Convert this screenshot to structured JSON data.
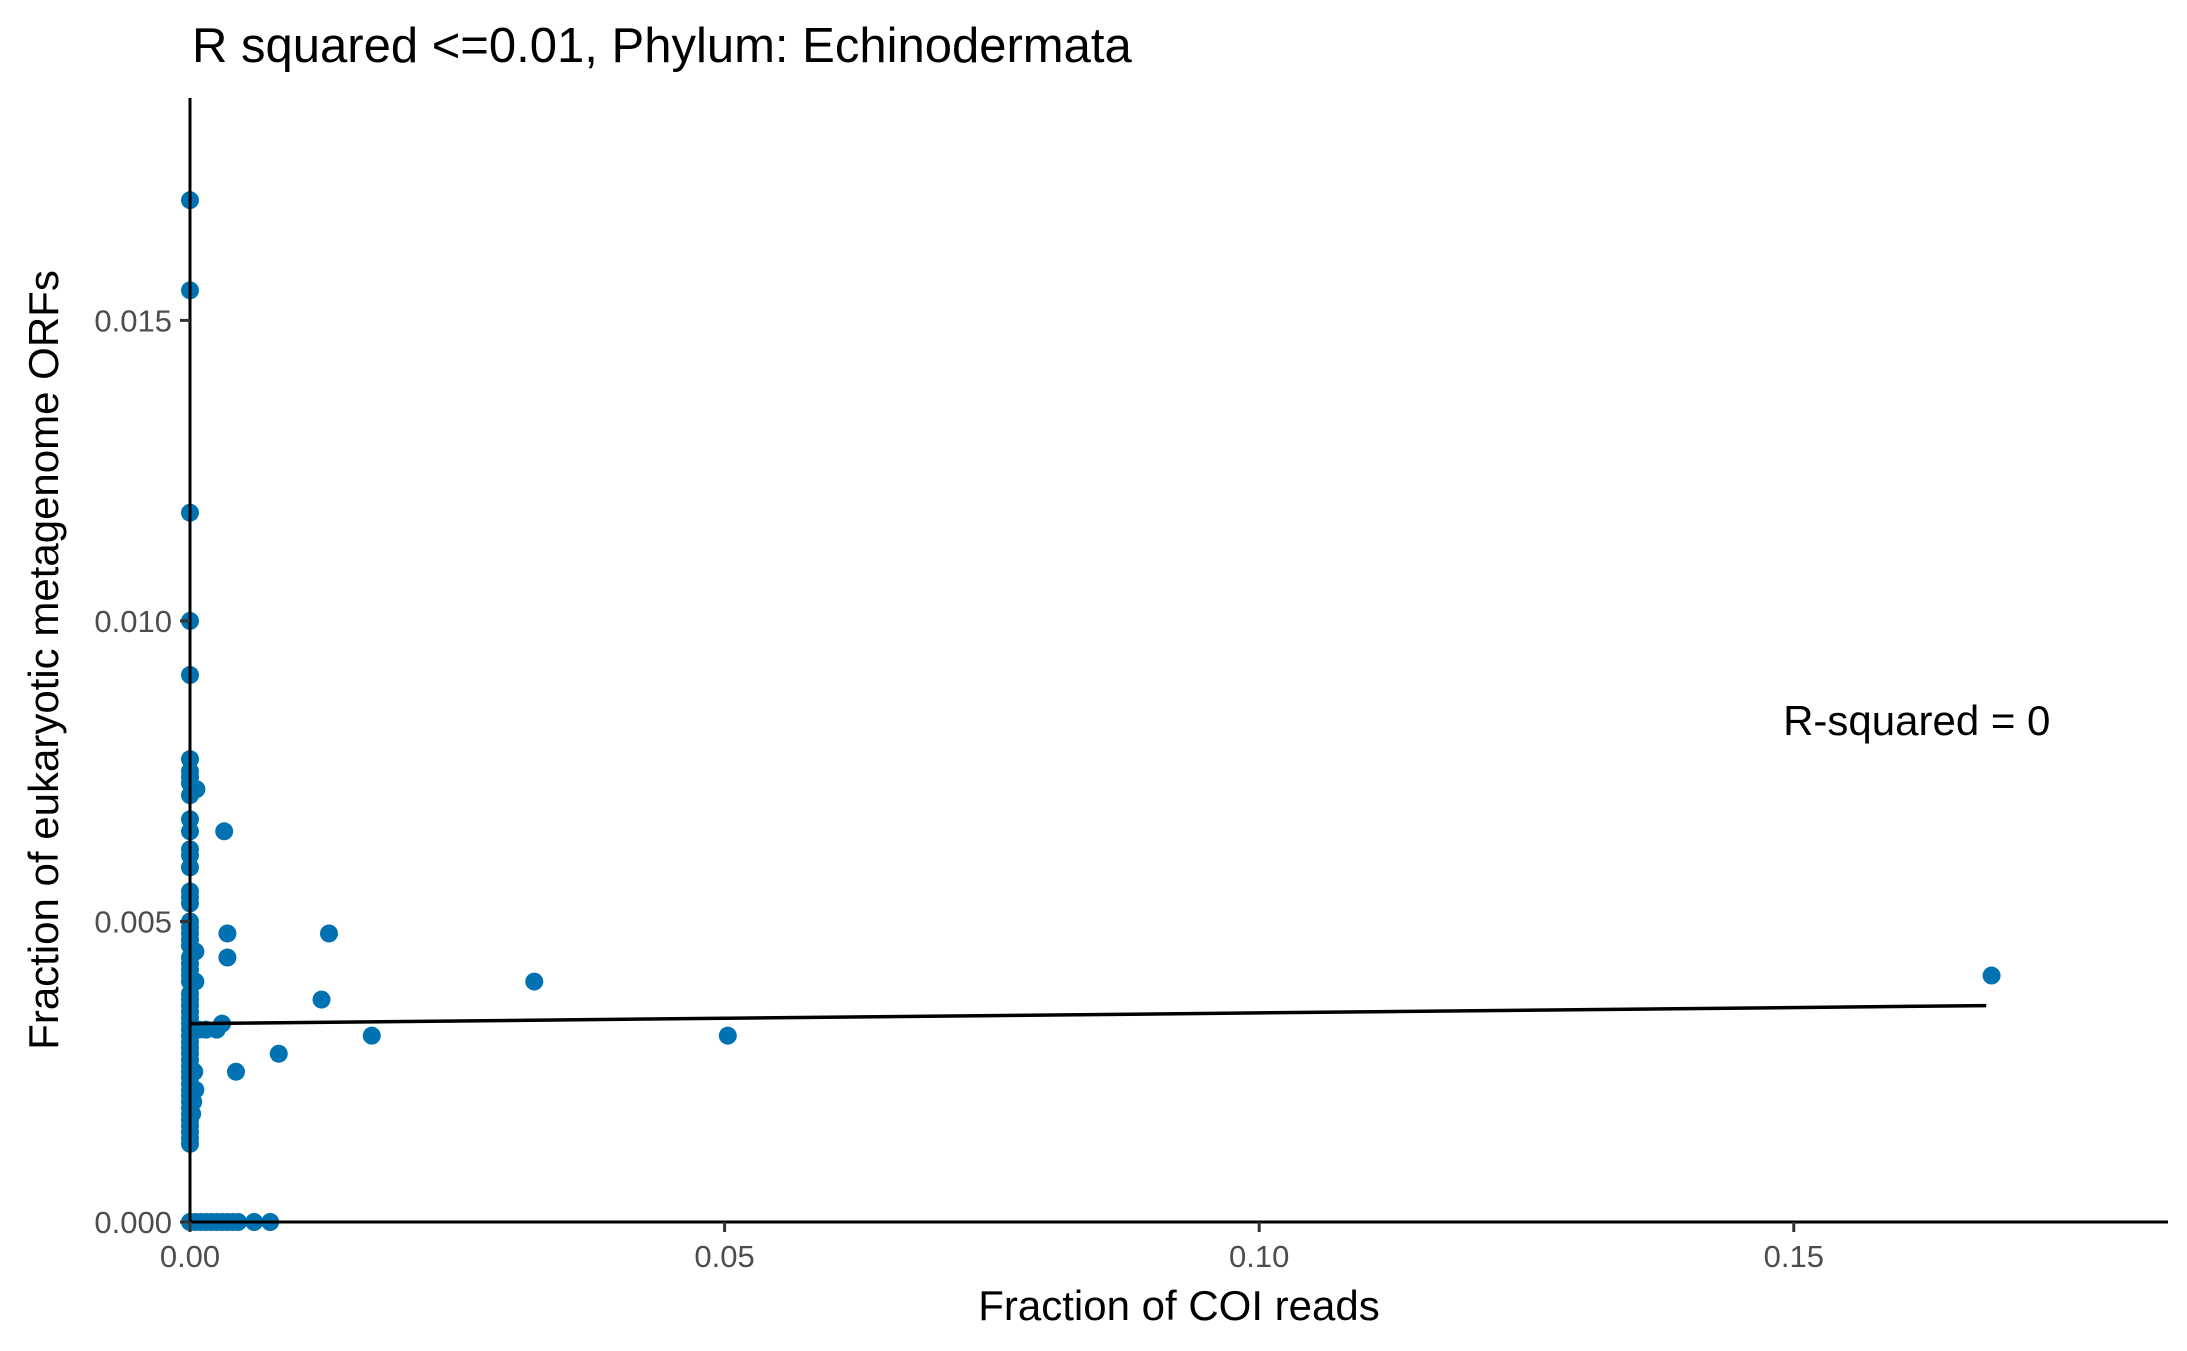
{
  "chart_data": {
    "type": "scatter",
    "title": "R squared <=0.01, Phylum:  Echinodermata",
    "xlabel": "Fraction of COI reads",
    "ylabel": "Fraction of eukaryotic metagenome ORFs",
    "xlim": [
      0,
      0.185
    ],
    "ylim": [
      0,
      0.0187
    ],
    "x_ticks": [
      0.0,
      0.05,
      0.1,
      0.15
    ],
    "x_tick_labels": [
      "0.00",
      "0.05",
      "0.10",
      "0.15"
    ],
    "y_ticks": [
      0.0,
      0.005,
      0.01,
      0.015
    ],
    "y_tick_labels": [
      "0.000",
      "0.005",
      "0.010",
      "0.015"
    ],
    "grid": false,
    "point_color": "#0072B2",
    "line_color": "#000000",
    "annotation": {
      "text": "R-squared =  0",
      "x": 0.149,
      "y": 0.0081
    },
    "fit_line": {
      "x": [
        0.0,
        0.168
      ],
      "y": [
        0.0033,
        0.0036
      ]
    },
    "points": [
      [
        0.0,
        0.017
      ],
      [
        0.0,
        0.0155
      ],
      [
        0.0,
        0.0118
      ],
      [
        0.0,
        0.01
      ],
      [
        0.0,
        0.0091
      ],
      [
        0.0,
        0.0077
      ],
      [
        0.0,
        0.0075
      ],
      [
        0.0,
        0.0074
      ],
      [
        0.0,
        0.0073
      ],
      [
        0.0,
        0.0071
      ],
      [
        0.0,
        0.0067
      ],
      [
        0.0,
        0.0065
      ],
      [
        0.0,
        0.0062
      ],
      [
        0.0,
        0.0061
      ],
      [
        0.0,
        0.0059
      ],
      [
        0.0,
        0.0055
      ],
      [
        0.0,
        0.0054
      ],
      [
        0.0,
        0.0053
      ],
      [
        0.0,
        0.005
      ],
      [
        0.0,
        0.0049
      ],
      [
        0.0,
        0.0048
      ],
      [
        0.0,
        0.0047
      ],
      [
        0.0,
        0.0046
      ],
      [
        0.0,
        0.0044
      ],
      [
        0.0,
        0.0043
      ],
      [
        0.0,
        0.0042
      ],
      [
        0.0,
        0.0041
      ],
      [
        0.0,
        0.004
      ],
      [
        0.0,
        0.0038
      ],
      [
        0.0,
        0.0037
      ],
      [
        0.0,
        0.0036
      ],
      [
        0.0,
        0.0035
      ],
      [
        0.0,
        0.0034
      ],
      [
        0.0,
        0.0033
      ],
      [
        0.0,
        0.0032
      ],
      [
        0.0,
        0.0031
      ],
      [
        0.0,
        0.003
      ],
      [
        0.0,
        0.0029
      ],
      [
        0.0,
        0.0028
      ],
      [
        0.0,
        0.0027
      ],
      [
        0.0,
        0.0026
      ],
      [
        0.0,
        0.0025
      ],
      [
        0.0,
        0.0024
      ],
      [
        0.0,
        0.0023
      ],
      [
        0.0,
        0.0022
      ],
      [
        0.0,
        0.0021
      ],
      [
        0.0,
        0.002
      ],
      [
        0.0,
        0.0019
      ],
      [
        0.0,
        0.0018
      ],
      [
        0.0,
        0.0017
      ],
      [
        0.0,
        0.0016
      ],
      [
        0.0,
        0.0015
      ],
      [
        0.0,
        0.0014
      ],
      [
        0.0,
        0.0013
      ],
      [
        0.0,
        0.0
      ],
      [
        0.0006,
        0.0072
      ],
      [
        0.0005,
        0.0045
      ],
      [
        0.0005,
        0.004
      ],
      [
        0.0004,
        0.0032
      ],
      [
        0.0004,
        0.0025
      ],
      [
        0.0005,
        0.0022
      ],
      [
        0.0003,
        0.002
      ],
      [
        0.0002,
        0.0018
      ],
      [
        0.0008,
        0.0032
      ],
      [
        0.0015,
        0.0032
      ],
      [
        0.0025,
        0.0032
      ],
      [
        0.003,
        0.0033
      ],
      [
        0.0032,
        0.0065
      ],
      [
        0.0035,
        0.0048
      ],
      [
        0.0035,
        0.0044
      ],
      [
        0.0043,
        0.0025
      ],
      [
        0.0083,
        0.0028
      ],
      [
        0.0123,
        0.0037
      ],
      [
        0.013,
        0.0048
      ],
      [
        0.017,
        0.0031
      ],
      [
        0.0322,
        0.004
      ],
      [
        0.0503,
        0.0031
      ],
      [
        0.1685,
        0.0041
      ],
      [
        0.0005,
        0.0
      ],
      [
        0.001,
        0.0
      ],
      [
        0.0015,
        0.0
      ],
      [
        0.002,
        0.0
      ],
      [
        0.0025,
        0.0
      ],
      [
        0.003,
        0.0
      ],
      [
        0.0035,
        0.0
      ],
      [
        0.004,
        0.0
      ],
      [
        0.0045,
        0.0
      ],
      [
        0.006,
        0.0
      ],
      [
        0.0075,
        0.0
      ]
    ]
  }
}
